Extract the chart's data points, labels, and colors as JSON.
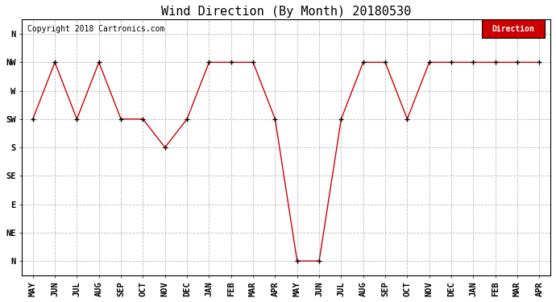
{
  "title": "Wind Direction (By Month) 20180530",
  "copyright": "Copyright 2018 Cartronics.com",
  "legend_label": "Direction",
  "legend_bg": "#cc0000",
  "legend_text_color": "#ffffff",
  "x_labels": [
    "MAY",
    "JUN",
    "JUL",
    "AUG",
    "SEP",
    "OCT",
    "NOV",
    "DEC",
    "JAN",
    "FEB",
    "MAR",
    "APR",
    "MAY",
    "JUN",
    "JUL",
    "AUG",
    "SEP",
    "OCT",
    "NOV",
    "DEC",
    "JAN",
    "FEB",
    "MAR",
    "APR"
  ],
  "y_labels_top_to_bot": [
    "N",
    "NW",
    "W",
    "SW",
    "S",
    "SE",
    "E",
    "NE",
    "N"
  ],
  "y_ticks": [
    8,
    7,
    6,
    5,
    4,
    3,
    2,
    1,
    0
  ],
  "data_values": [
    5,
    7,
    5,
    7,
    5,
    5,
    4,
    5,
    7,
    7,
    7,
    5,
    0,
    0,
    5,
    7,
    7,
    5,
    7,
    7,
    7,
    7,
    7,
    7
  ],
  "line_color": "#cc0000",
  "marker_color": "#000000",
  "bg_color": "#ffffff",
  "grid_color": "#bbbbbb",
  "title_fontsize": 11,
  "copyright_fontsize": 7,
  "tick_fontsize": 7.5,
  "fig_width": 6.9,
  "fig_height": 3.75,
  "dpi": 100
}
